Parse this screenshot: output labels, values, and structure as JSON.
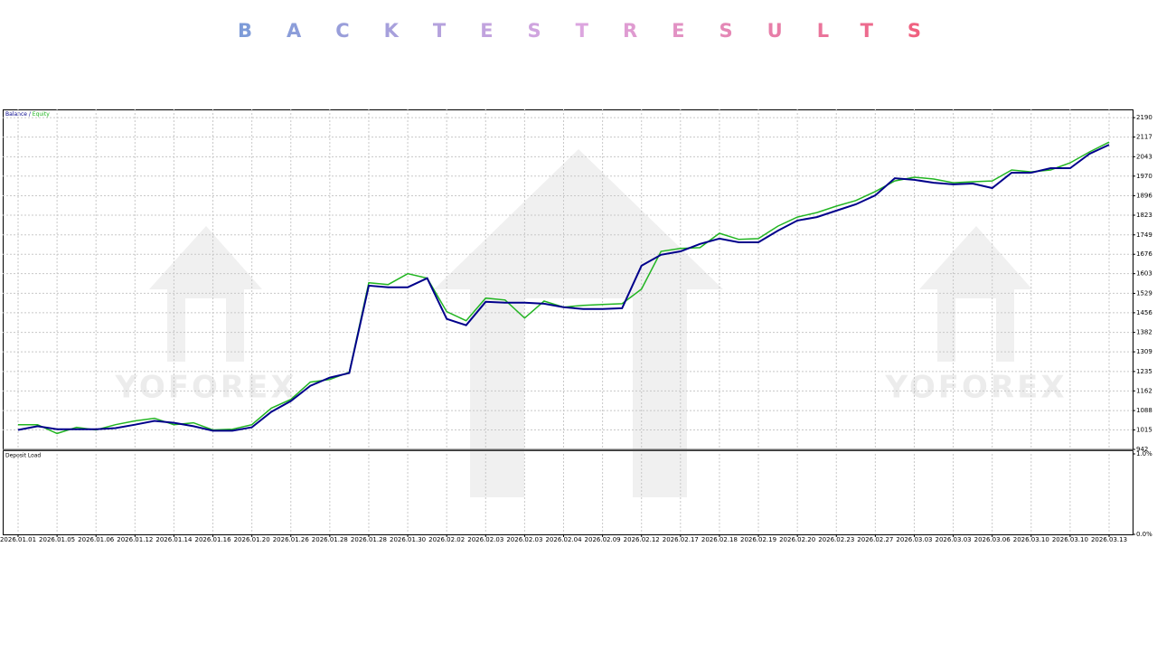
{
  "chart_data": [
    {
      "type": "line",
      "title": "BACKTESTRESULTS",
      "legend_separator": " / ",
      "watermark": "YOFOREX",
      "categories": [
        "2026.01.01",
        null,
        "2026.01.05",
        null,
        "2026.01.06",
        null,
        "2026.01.12",
        null,
        "2026.01.14",
        null,
        "2026.01.16",
        null,
        "2026.01.20",
        null,
        "2026.01.26",
        null,
        "2026.01.28",
        null,
        "2026.01.28",
        null,
        "2026.01.30",
        null,
        "2026.02.02",
        null,
        "2026.02.03",
        null,
        "2026.02.03",
        null,
        "2026.02.04",
        null,
        "2026.02.09",
        null,
        "2026.02.12",
        null,
        "2026.02.17",
        null,
        "2026.02.18",
        null,
        "2026.02.19",
        null,
        "2026.02.20",
        null,
        "2026.02.23",
        null,
        "2026.02.27",
        null,
        "2026.03.03",
        null,
        "2026.03.03",
        null,
        "2026.03.06",
        null,
        "2026.03.10",
        null,
        "2026.03.10",
        null,
        "2026.03.13"
      ],
      "series": [
        {
          "name": "Balance",
          "color": "#00008b",
          "values": [
            1015,
            1029,
            1018,
            1018,
            1018,
            1022,
            1035,
            1049,
            1042,
            1029,
            1012,
            1012,
            1025,
            1083,
            1124,
            1181,
            1212,
            1229,
            1558,
            1552,
            1552,
            1586,
            1433,
            1409,
            1497,
            1494,
            1494,
            1490,
            1477,
            1470,
            1470,
            1473,
            1633,
            1674,
            1687,
            1715,
            1735,
            1721,
            1721,
            1765,
            1803,
            1816,
            1840,
            1864,
            1898,
            1962,
            1956,
            1945,
            1939,
            1942,
            1925,
            1983,
            1983,
            2000,
            2000,
            2054,
            2088
          ]
        },
        {
          "name": "Equity",
          "color": "#22b522",
          "values": [
            1035,
            1035,
            1002,
            1025,
            1015,
            1035,
            1049,
            1059,
            1035,
            1042,
            1015,
            1018,
            1035,
            1097,
            1130,
            1195,
            1205,
            1232,
            1569,
            1562,
            1603,
            1586,
            1460,
            1426,
            1511,
            1504,
            1436,
            1500,
            1477,
            1484,
            1487,
            1490,
            1545,
            1687,
            1698,
            1701,
            1755,
            1732,
            1735,
            1782,
            1816,
            1833,
            1857,
            1878,
            1912,
            1952,
            1966,
            1959,
            1945,
            1949,
            1952,
            1993,
            1986,
            1993,
            2020,
            2061,
            2098
          ]
        }
      ],
      "ylim": [
        942,
        2221
      ],
      "yticks": [
        942,
        1015,
        1088,
        1162,
        1235,
        1309,
        1382,
        1456,
        1529,
        1603,
        1676,
        1749,
        1823,
        1896,
        1970,
        2043,
        2117,
        2190
      ],
      "grid": true
    },
    {
      "type": "panel",
      "title": "Deposit Load",
      "ylim": [
        0,
        1
      ],
      "yticks": [
        {
          "value": 1,
          "label": "1.0%"
        },
        {
          "value": 0,
          "label": "0.0%"
        }
      ],
      "grid": true
    }
  ]
}
